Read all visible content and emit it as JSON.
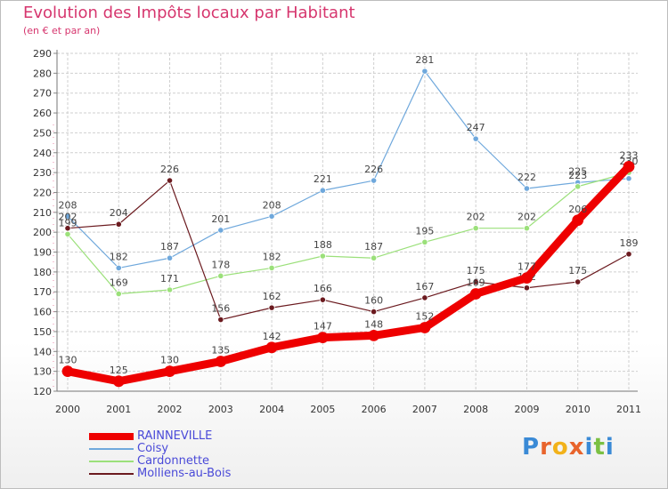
{
  "title": "Evolution des Impôts locaux par Habitant",
  "subtitle": "(en € et par an)",
  "brand": "Proxiti",
  "chart_data": {
    "type": "line",
    "title": "Evolution des Impôts locaux par Habitant",
    "subtitle": "(en € et par an)",
    "xlabel": "",
    "ylabel": "",
    "categories": [
      "2000",
      "2001",
      "2002",
      "2003",
      "2004",
      "2005",
      "2006",
      "2007",
      "2008",
      "2009",
      "2010",
      "2011"
    ],
    "ylim": [
      120,
      290
    ],
    "yticks": [
      120,
      130,
      140,
      150,
      160,
      170,
      180,
      190,
      200,
      210,
      220,
      230,
      240,
      250,
      260,
      270,
      280,
      290
    ],
    "grid": true,
    "legend_position": "bottom-left",
    "series": [
      {
        "name": "Coisy",
        "color": "#6fa8dc",
        "values": [
          208,
          182,
          187,
          201,
          208,
          221,
          226,
          281,
          247,
          222,
          225,
          227
        ],
        "labels": [
          "208",
          "182",
          "187",
          "201",
          "208",
          "221",
          "226",
          "281",
          "247",
          "222",
          "225",
          ""
        ]
      },
      {
        "name": "Cardonnette",
        "color": "#9be07a",
        "values": [
          199,
          169,
          171,
          178,
          182,
          188,
          187,
          195,
          202,
          202,
          223,
          230
        ],
        "labels": [
          "199",
          "169",
          "171",
          "178",
          "182",
          "188",
          "187",
          "195",
          "202",
          "202",
          "223",
          "230"
        ]
      },
      {
        "name": "Molliens-au-Bois",
        "color": "#6b1a1f",
        "values": [
          202,
          204,
          226,
          156,
          162,
          166,
          160,
          167,
          175,
          172,
          175,
          189
        ],
        "labels": [
          "202",
          "204",
          "226",
          "156",
          "162",
          "166",
          "160",
          "167",
          "175",
          "172",
          "175",
          "189"
        ]
      },
      {
        "name": "RAINNEVILLE",
        "color": "#ee0000",
        "values": [
          130,
          125,
          130,
          135,
          142,
          147,
          148,
          152,
          169,
          177,
          206,
          233
        ],
        "labels": [
          "130",
          "125",
          "130",
          "135",
          "142",
          "147",
          "148",
          "152",
          "169",
          "177",
          "206",
          "233"
        ]
      }
    ]
  }
}
